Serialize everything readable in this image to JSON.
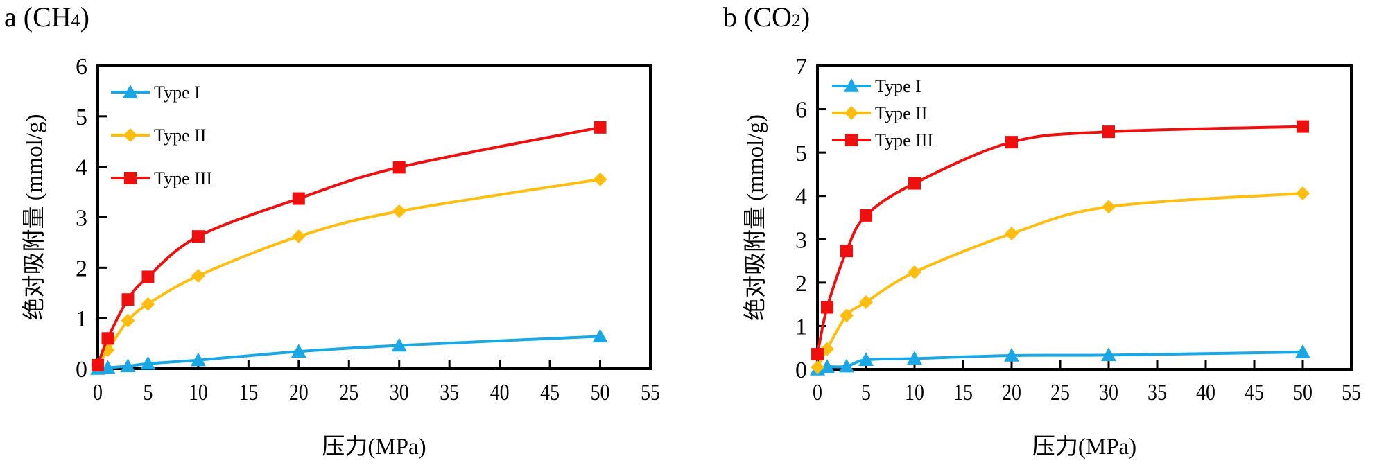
{
  "chart_data": [
    {
      "type": "line",
      "panel_letter": "a",
      "title": "a (CH4)",
      "title_main": "a (CH",
      "title_sub": "4",
      "title_close": ")",
      "xlabel": "压力(MPa)",
      "ylabel": "绝对吸附量 (mmol/g)",
      "xlim": [
        0,
        55
      ],
      "ylim": [
        0,
        6
      ],
      "xticks": [
        0,
        5,
        10,
        15,
        20,
        25,
        30,
        35,
        40,
        45,
        50,
        55
      ],
      "yticks": [
        0,
        1,
        2,
        3,
        4,
        5,
        6
      ],
      "grid": false,
      "legend_position": "top-left",
      "x": [
        0,
        1,
        3,
        5,
        10,
        20,
        30,
        50
      ],
      "series": [
        {
          "name": "Type I",
          "color": "#1aa7e6",
          "marker": "triangle",
          "values": [
            0.0,
            0.02,
            0.05,
            0.1,
            0.17,
            0.34,
            0.46,
            0.64
          ]
        },
        {
          "name": "Type II",
          "color": "#ffbe0f",
          "marker": "diamond",
          "values": [
            0.07,
            0.37,
            0.95,
            1.28,
            1.84,
            2.62,
            3.12,
            3.75
          ]
        },
        {
          "name": "Type III",
          "color": "#f00f0f",
          "marker": "square",
          "values": [
            0.07,
            0.6,
            1.37,
            1.82,
            2.62,
            3.37,
            3.99,
            4.78
          ]
        }
      ]
    },
    {
      "type": "line",
      "panel_letter": "b",
      "title": "b (CO2)",
      "title_main": "b (CO",
      "title_sub": "2",
      "title_close": ")",
      "xlabel": "压力(MPa)",
      "ylabel": "绝对吸附量 (mmol/g)",
      "xlim": [
        0,
        55
      ],
      "ylim": [
        0,
        7
      ],
      "xticks": [
        0,
        5,
        10,
        15,
        20,
        25,
        30,
        35,
        40,
        45,
        50,
        55
      ],
      "yticks": [
        0,
        1,
        2,
        3,
        4,
        5,
        6,
        7
      ],
      "grid": false,
      "legend_position": "top-left",
      "x": [
        0,
        1,
        3,
        5,
        10,
        20,
        30,
        50
      ],
      "series": [
        {
          "name": "Type I",
          "color": "#1aa7e6",
          "marker": "triangle",
          "values": [
            0.0,
            0.06,
            0.07,
            0.22,
            0.25,
            0.32,
            0.33,
            0.4
          ]
        },
        {
          "name": "Type II",
          "color": "#ffbe0f",
          "marker": "diamond",
          "values": [
            0.05,
            0.47,
            1.24,
            1.55,
            2.24,
            3.13,
            3.75,
            4.06
          ]
        },
        {
          "name": "Type III",
          "color": "#f00f0f",
          "marker": "square",
          "values": [
            0.35,
            1.43,
            2.73,
            3.55,
            4.29,
            5.24,
            5.48,
            5.6
          ]
        }
      ]
    }
  ]
}
